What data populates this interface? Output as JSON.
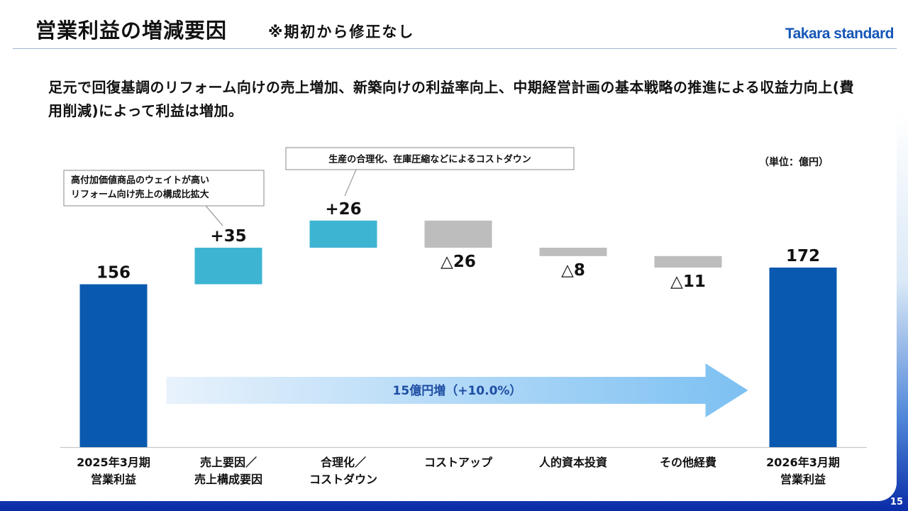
{
  "slide": {
    "title": "営業利益の増減要因",
    "subtitle": "※期初から修正なし",
    "logo": "Takara standard",
    "lead": "足元で回復基調のリフォーム向けの売上増加、新築向けの利益率向上、中期経営計画の基本戦略の推進による収益力向上(費用削減)によって利益は増加。",
    "page_number": "15"
  },
  "colors": {
    "total": "#0a59b0",
    "increase": "#3db5d2",
    "decrease": "#bdbdbd",
    "arrow_start": "#e8f2fc",
    "arrow_end": "#7cc0f2",
    "arrow_text": "#1f4ea3"
  },
  "chart_data": {
    "type": "bar",
    "subtype": "waterfall",
    "unit": "（単位：億円）",
    "categories": [
      [
        "2025年3月期",
        "営業利益"
      ],
      [
        "売上要因／",
        "売上構成要因"
      ],
      [
        "合理化／",
        "コストダウン"
      ],
      [
        "コストアップ"
      ],
      [
        "人的資本投資"
      ],
      [
        "その他経費"
      ],
      [
        "2026年3月期",
        "営業利益"
      ]
    ],
    "steps": [
      {
        "kind": "total",
        "value": 156,
        "label": "156"
      },
      {
        "kind": "increase",
        "value": 35,
        "label": "+35"
      },
      {
        "kind": "increase",
        "value": 26,
        "label": "+26"
      },
      {
        "kind": "decrease",
        "value": -26,
        "label": "△26"
      },
      {
        "kind": "decrease",
        "value": -8,
        "label": "△8"
      },
      {
        "kind": "decrease",
        "value": -11,
        "label": "△11"
      },
      {
        "kind": "total",
        "value": 172,
        "label": "172"
      }
    ],
    "annotations": [
      {
        "step": 1,
        "lines": [
          "高付加価値商品のウェイトが高い",
          "リフォーム向け売上の構成比拡大"
        ]
      },
      {
        "step": 2,
        "lines": [
          "生産の合理化、在庫圧縮などによるコストダウン"
        ]
      }
    ],
    "change_arrow": {
      "label": "15億円増（+10.0%）",
      "from_step": 0,
      "to_step": 6
    }
  }
}
